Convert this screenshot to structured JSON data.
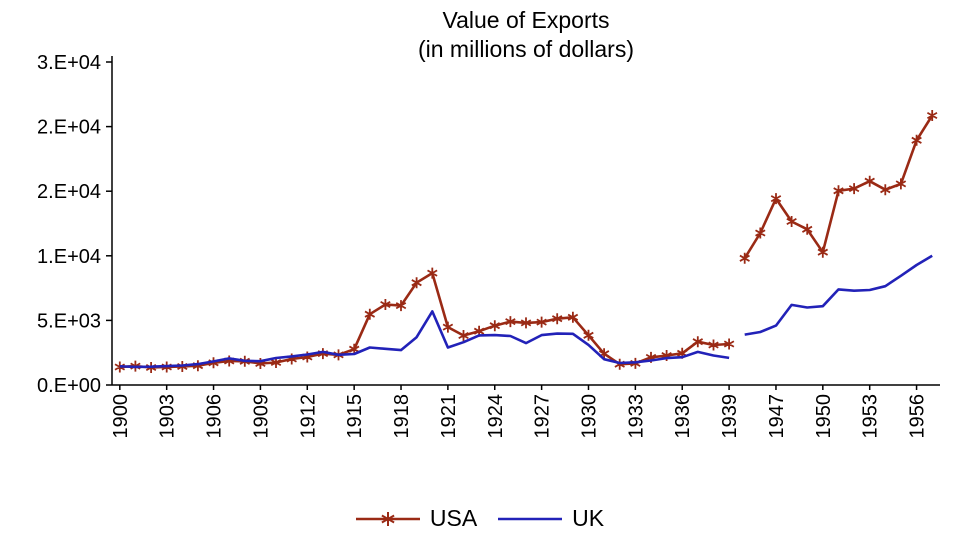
{
  "chart_data": {
    "type": "line",
    "title": "Value of Exports",
    "subtitle": "(in millions of dollars)",
    "xlabel": "",
    "ylabel": "",
    "ylim": [
      0,
      25000
    ],
    "grid": false,
    "legend_position": "bottom",
    "axis_color": "#000000",
    "background": "#ffffff",
    "yticks": [
      {
        "value": 0,
        "label": "0.E+00"
      },
      {
        "value": 5000,
        "label": "5.E+03"
      },
      {
        "value": 10000,
        "label": "1.E+04"
      },
      {
        "value": 15000,
        "label": "2.E+04"
      },
      {
        "value": 20000,
        "label": "2.E+04"
      },
      {
        "value": 25000,
        "label": "3.E+04"
      }
    ],
    "xtick_every": 3,
    "xtick_labels": [
      "1900",
      "1903",
      "1906",
      "1909",
      "1912",
      "1915",
      "1918",
      "1921",
      "1924",
      "1927",
      "1930",
      "1933",
      "1936",
      "1939",
      "1947",
      "1950",
      "1953",
      "1956"
    ],
    "x": [
      1900,
      1901,
      1902,
      1903,
      1904,
      1905,
      1906,
      1907,
      1908,
      1909,
      1910,
      1911,
      1912,
      1913,
      1914,
      1915,
      1916,
      1917,
      1918,
      1919,
      1920,
      1921,
      1922,
      1923,
      1924,
      1925,
      1926,
      1927,
      1928,
      1929,
      1930,
      1931,
      1932,
      1933,
      1934,
      1935,
      1936,
      1937,
      1938,
      1939,
      1945,
      1946,
      1947,
      1948,
      1949,
      1950,
      1951,
      1952,
      1953,
      1954,
      1955,
      1956,
      1957
    ],
    "series": [
      {
        "name": "USA",
        "color": "#9a2a15",
        "marker": "asterisk",
        "values": [
          1394,
          1461,
          1355,
          1392,
          1435,
          1492,
          1718,
          1854,
          1835,
          1663,
          1745,
          2013,
          2170,
          2428,
          2330,
          2769,
          5483,
          6234,
          6149,
          7920,
          8664,
          4485,
          3832,
          4167,
          4591,
          4910,
          4809,
          4865,
          5128,
          5241,
          3843,
          2424,
          1611,
          1675,
          2133,
          2283,
          2456,
          3349,
          3094,
          3177,
          9806,
          11764,
          14430,
          12653,
          12051,
          10275,
          15032,
          15201,
          15774,
          15115,
          15563,
          18940,
          20861
        ]
      },
      {
        "name": "UK",
        "color": "#2222b8",
        "marker": "none",
        "values": [
          1450,
          1400,
          1420,
          1460,
          1510,
          1620,
          1830,
          2060,
          1870,
          1840,
          2090,
          2210,
          2360,
          2560,
          2340,
          2400,
          2900,
          2800,
          2700,
          3700,
          5700,
          2900,
          3310,
          3840,
          3860,
          3790,
          3240,
          3860,
          3980,
          3960,
          3100,
          2000,
          1700,
          1760,
          1900,
          2080,
          2150,
          2560,
          2280,
          2100,
          3900,
          4100,
          4600,
          6200,
          6000,
          6100,
          7400,
          7300,
          7350,
          7650,
          8450,
          9290,
          10000
        ]
      }
    ]
  }
}
